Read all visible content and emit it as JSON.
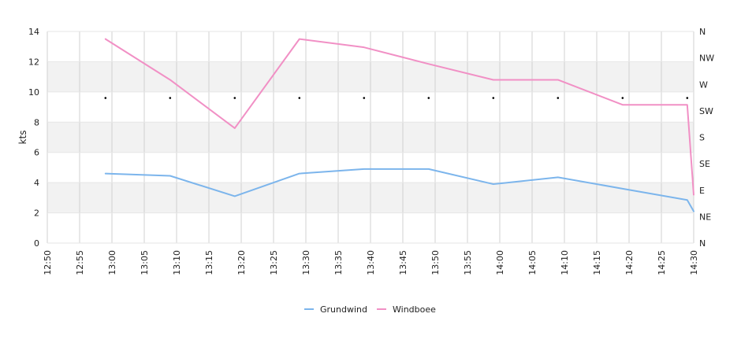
{
  "chart_data": {
    "type": "line",
    "title": "",
    "xlabel": "",
    "ylabel": "kts",
    "ylim": [
      0,
      14
    ],
    "yticks": [
      "0",
      "2",
      "4",
      "6",
      "8",
      "10",
      "12",
      "14"
    ],
    "xticks": [
      "12:50",
      "12:55",
      "13:00",
      "13:05",
      "13:10",
      "13:15",
      "13:20",
      "13:25",
      "13:30",
      "13:35",
      "13:40",
      "13:45",
      "13:50",
      "13:55",
      "14:00",
      "14:05",
      "14:10",
      "14:15",
      "14:20",
      "14:25",
      "14:30"
    ],
    "right_axis_labels": [
      "N",
      "NE",
      "E",
      "SE",
      "S",
      "SW",
      "W",
      "NW",
      "N"
    ],
    "grid": true,
    "legend_position": "bottom",
    "series": [
      {
        "name": "Grundwind",
        "color": "#7cb5ec",
        "x": [
          "12:59",
          "13:09",
          "13:19",
          "13:29",
          "13:39",
          "13:49",
          "13:59",
          "14:09",
          "14:19",
          "14:29",
          "14:30"
        ],
        "values": [
          4.6,
          4.45,
          3.1,
          4.6,
          4.9,
          4.9,
          3.9,
          4.35,
          3.6,
          2.85,
          2.1
        ]
      },
      {
        "name": "Windboee",
        "color": "#f190c5",
        "x": [
          "12:59",
          "13:09",
          "13:19",
          "13:29",
          "13:39",
          "13:49",
          "13:59",
          "14:09",
          "14:19",
          "14:29",
          "14:30"
        ],
        "values": [
          13.5,
          10.8,
          7.6,
          13.5,
          12.95,
          11.85,
          10.8,
          10.8,
          9.15,
          9.15,
          3.2
        ]
      }
    ],
    "direction_markers": {
      "x": [
        "12:59",
        "13:09",
        "13:19",
        "13:29",
        "13:39",
        "13:49",
        "13:59",
        "14:09",
        "14:19",
        "14:29"
      ],
      "y": 9.6,
      "color": "#000000"
    }
  }
}
